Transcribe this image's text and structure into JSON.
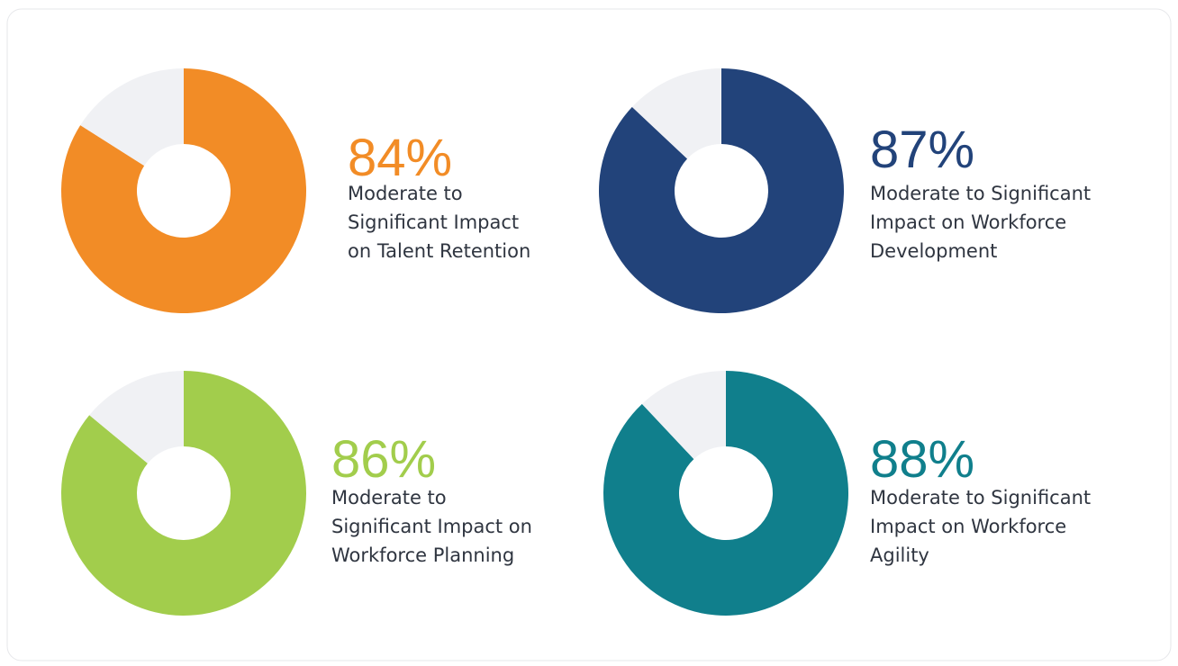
{
  "chart_data": [
    {
      "type": "pie",
      "values": [
        84,
        16
      ],
      "value_labels": [
        "84%",
        null
      ],
      "colors": [
        "#f28c26",
        "#f0f1f4"
      ],
      "description": [
        "Moderate to",
        "Significant Impact",
        "on Talent Retention"
      ]
    },
    {
      "type": "pie",
      "values": [
        87,
        13
      ],
      "value_labels": [
        "87%",
        null
      ],
      "colors": [
        "#22437a",
        "#f0f1f4"
      ],
      "description": [
        "Moderate to Significant",
        "Impact on Workforce",
        "Development"
      ]
    },
    {
      "type": "pie",
      "values": [
        86,
        14
      ],
      "value_labels": [
        "86%",
        null
      ],
      "colors": [
        "#a2cd4c",
        "#f0f1f4"
      ],
      "description": [
        "Moderate to",
        "Significant Impact on",
        "Workforce Planning"
      ]
    },
    {
      "type": "pie",
      "values": [
        88,
        12
      ],
      "value_labels": [
        "88%",
        null
      ],
      "colors": [
        "#107f8c",
        "#f0f1f4"
      ],
      "description": [
        "Moderate to Significant",
        "Impact on Workforce",
        "Agility"
      ]
    }
  ]
}
